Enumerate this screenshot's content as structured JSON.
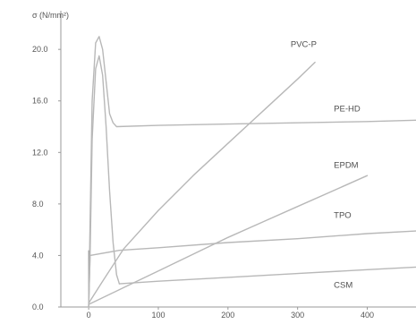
{
  "chart_data": {
    "type": "line",
    "ylabel": "σ (N/mm²)",
    "xlabel": "",
    "xlim": [
      -40,
      470
    ],
    "ylim": [
      0,
      23
    ],
    "x_ticks": [
      0,
      100,
      200,
      300,
      400
    ],
    "x_tick_labels": [
      "0",
      "100",
      "200",
      "300",
      "400"
    ],
    "y_ticks": [
      0,
      4,
      8,
      12,
      16,
      20
    ],
    "y_tick_labels": [
      "0.0",
      "4.0",
      "8.0",
      "12.0",
      "16.0",
      "20.0"
    ],
    "grid": false,
    "colors": {
      "axis": "#9a9a9a",
      "line": "#b8b8b8",
      "text": "#555555"
    },
    "series": [
      {
        "name": "PVC-P",
        "x": [
          0,
          20,
          50,
          100,
          150,
          200,
          250,
          300,
          325
        ],
        "y": [
          0.3,
          2.0,
          4.5,
          7.5,
          10.2,
          12.7,
          15.2,
          17.7,
          19.0
        ]
      },
      {
        "name": "PE-HD",
        "x": [
          0,
          5,
          10,
          15,
          20,
          25,
          30,
          35,
          40,
          100,
          200,
          300,
          400,
          470
        ],
        "y": [
          0,
          16,
          20.5,
          21,
          20,
          17.5,
          15,
          14.3,
          14.0,
          14.1,
          14.2,
          14.3,
          14.4,
          14.5
        ]
      },
      {
        "name": "EPDM",
        "x": [
          0,
          50,
          100,
          150,
          200,
          250,
          300,
          350,
          400
        ],
        "y": [
          0.2,
          1.5,
          2.8,
          4.1,
          5.4,
          6.6,
          7.8,
          9.0,
          10.2
        ]
      },
      {
        "name": "TPO",
        "x": [
          0,
          2,
          5,
          10,
          15,
          20,
          25,
          30,
          35,
          40,
          44
        ],
        "y": [
          0,
          4.0,
          13,
          18.5,
          19.5,
          18,
          14,
          9,
          5,
          2.5,
          1.8
        ]
      },
      {
        "name": "CSM",
        "x": [
          0,
          2,
          44,
          100,
          200,
          300,
          400,
          470
        ],
        "y": [
          0,
          4.0,
          4.4,
          4.6,
          5.0,
          5.3,
          5.7,
          5.9
        ]
      },
      {
        "name": "",
        "x": [
          44,
          100,
          200,
          300,
          400,
          470
        ],
        "y": [
          1.8,
          2.0,
          2.3,
          2.6,
          2.9,
          3.1
        ]
      }
    ],
    "labels": [
      {
        "text": "PVC-P",
        "x": 290,
        "y": 20.2
      },
      {
        "text": "PE-HD",
        "x": 352,
        "y": 15.2
      },
      {
        "text": "EPDM",
        "x": 352,
        "y": 10.8
      },
      {
        "text": "TPO",
        "x": 352,
        "y": 6.9
      },
      {
        "text": "CSM",
        "x": 352,
        "y": 1.5
      }
    ]
  }
}
